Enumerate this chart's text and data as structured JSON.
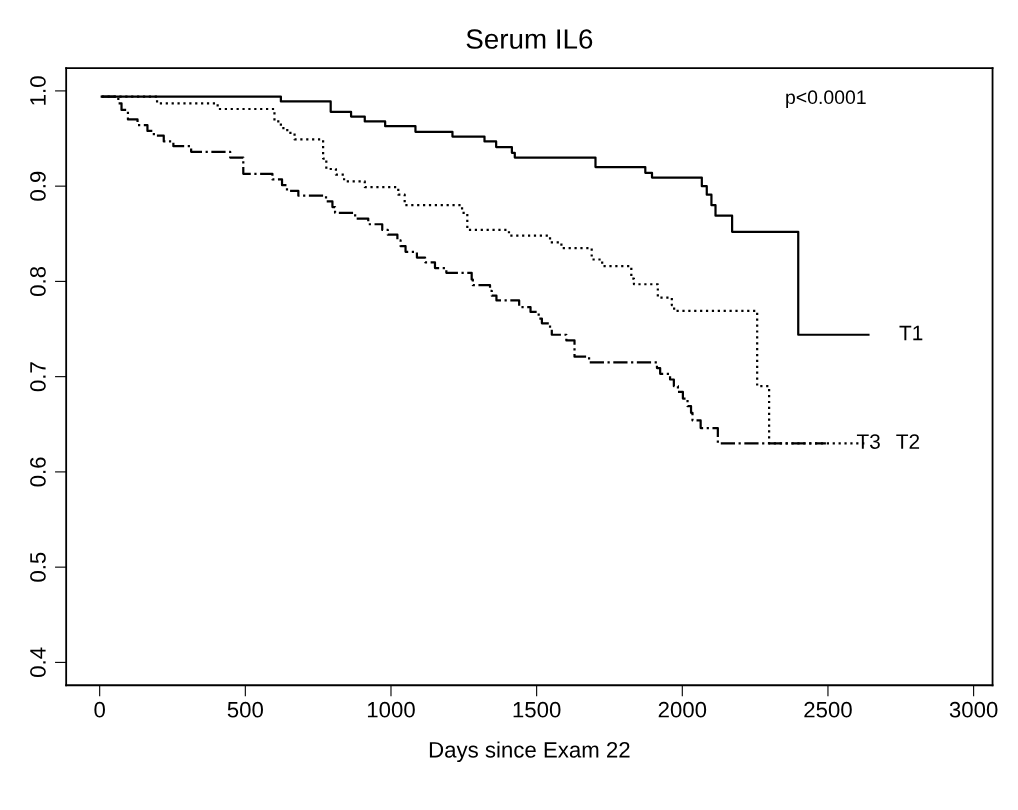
{
  "chart_data": {
    "type": "step",
    "title": "Serum IL6",
    "xlabel": "Days since Exam 22",
    "annotations": [
      "p<0.0001"
    ],
    "xlim": [
      -115,
      3065
    ],
    "ylim": [
      0.376,
      1.024
    ],
    "xticks": [
      0,
      500,
      1000,
      1500,
      2000,
      2500,
      3000
    ],
    "yticks": [
      0.4,
      0.5,
      0.6,
      0.7,
      0.8,
      0.9,
      {
        "value": 1.0,
        "label": "1.0"
      }
    ],
    "grid": false,
    "legend": false,
    "series": [
      {
        "name": "T1",
        "color": "#000000",
        "line_style": "solid",
        "x": [
          7,
          622,
          793,
          863,
          910,
          980,
          1084,
          1211,
          1321,
          1361,
          1415,
          1425,
          1702,
          1873,
          1896,
          2067,
          2084,
          2100,
          2114,
          2171,
          2398,
          2639
        ],
        "values": [
          0.994,
          0.989,
          0.978,
          0.973,
          0.968,
          0.963,
          0.957,
          0.952,
          0.947,
          0.941,
          0.935,
          0.93,
          0.92,
          0.914,
          0.909,
          0.9,
          0.891,
          0.88,
          0.869,
          0.852,
          0.744,
          0.744
        ]
      },
      {
        "name": "T2",
        "color": "#000000",
        "line_style": "dotted",
        "x": [
          7,
          197,
          405,
          600,
          622,
          644,
          669,
          767,
          778,
          811,
          839,
          910,
          1025,
          1047,
          1244,
          1262,
          1405,
          1546,
          1585,
          1689,
          1725,
          1825,
          1834,
          1916,
          1964,
          1972,
          2257,
          2298,
          2628
        ],
        "values": [
          0.994,
          0.987,
          0.981,
          0.968,
          0.961,
          0.956,
          0.949,
          0.929,
          0.918,
          0.912,
          0.905,
          0.899,
          0.891,
          0.88,
          0.872,
          0.854,
          0.848,
          0.841,
          0.835,
          0.823,
          0.816,
          0.803,
          0.797,
          0.783,
          0.775,
          0.769,
          0.69,
          0.63,
          0.63
        ]
      },
      {
        "name": "T3",
        "color": "#000000",
        "line_style": "dashdot",
        "x": [
          7,
          64,
          75,
          97,
          130,
          164,
          186,
          220,
          253,
          314,
          448,
          493,
          593,
          626,
          643,
          682,
          777,
          799,
          808,
          877,
          922,
          970,
          989,
          1022,
          1033,
          1050,
          1089,
          1117,
          1151,
          1190,
          1277,
          1281,
          1340,
          1346,
          1362,
          1440,
          1479,
          1507,
          1518,
          1546,
          1552,
          1602,
          1630,
          1680,
          1913,
          1924,
          1958,
          1971,
          1985,
          2002,
          2018,
          2030,
          2035,
          2063,
          2122,
          2493
        ],
        "values": [
          0.994,
          0.987,
          0.98,
          0.97,
          0.964,
          0.958,
          0.953,
          0.947,
          0.942,
          0.936,
          0.93,
          0.913,
          0.907,
          0.901,
          0.895,
          0.89,
          0.884,
          0.878,
          0.872,
          0.866,
          0.86,
          0.854,
          0.849,
          0.843,
          0.837,
          0.831,
          0.825,
          0.82,
          0.814,
          0.809,
          0.802,
          0.796,
          0.79,
          0.785,
          0.78,
          0.773,
          0.768,
          0.761,
          0.756,
          0.75,
          0.744,
          0.738,
          0.721,
          0.715,
          0.709,
          0.703,
          0.697,
          0.69,
          0.684,
          0.677,
          0.669,
          0.662,
          0.654,
          0.646,
          0.63,
          0.63
        ]
      }
    ]
  }
}
